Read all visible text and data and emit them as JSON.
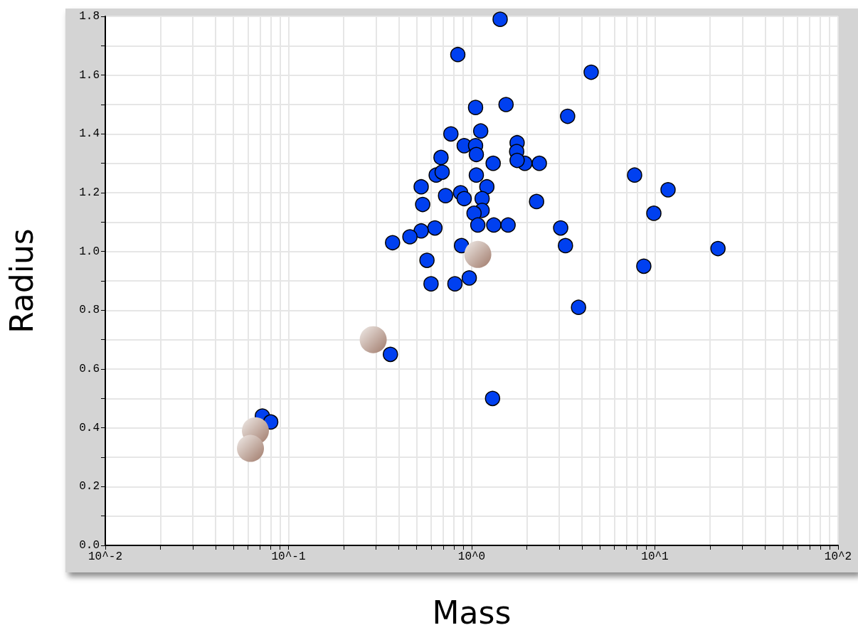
{
  "chart_data": {
    "type": "scatter",
    "xlabel": "Mass",
    "ylabel": "Radius",
    "log": "x",
    "grid": true,
    "marker": "circle",
    "xlim": [
      0.01,
      100
    ],
    "ylim": [
      0,
      1.8
    ],
    "xticks": [
      {
        "value": 0.01,
        "label": "10^-2"
      },
      {
        "value": 0.02,
        "label": null
      },
      {
        "value": 0.03,
        "label": null
      },
      {
        "value": 0.04,
        "label": null
      },
      {
        "value": 0.05,
        "label": null
      },
      {
        "value": 0.06,
        "label": null
      },
      {
        "value": 0.07,
        "label": null
      },
      {
        "value": 0.08,
        "label": null
      },
      {
        "value": 0.09,
        "label": null
      },
      {
        "value": 0.1,
        "label": "10^-1"
      },
      {
        "value": 0.2,
        "label": null
      },
      {
        "value": 0.3,
        "label": null
      },
      {
        "value": 0.4,
        "label": null
      },
      {
        "value": 0.5,
        "label": null
      },
      {
        "value": 0.6,
        "label": null
      },
      {
        "value": 0.7,
        "label": null
      },
      {
        "value": 0.8,
        "label": null
      },
      {
        "value": 0.9,
        "label": null
      },
      {
        "value": 1,
        "label": "10^0"
      },
      {
        "value": 2,
        "label": null
      },
      {
        "value": 3,
        "label": null
      },
      {
        "value": 4,
        "label": null
      },
      {
        "value": 5,
        "label": null
      },
      {
        "value": 6,
        "label": null
      },
      {
        "value": 7,
        "label": null
      },
      {
        "value": 8,
        "label": null
      },
      {
        "value": 9,
        "label": null
      },
      {
        "value": 10,
        "label": "10^1"
      },
      {
        "value": 20,
        "label": null
      },
      {
        "value": 30,
        "label": null
      },
      {
        "value": 40,
        "label": null
      },
      {
        "value": 50,
        "label": null
      },
      {
        "value": 60,
        "label": null
      },
      {
        "value": 70,
        "label": null
      },
      {
        "value": 80,
        "label": null
      },
      {
        "value": 90,
        "label": null
      },
      {
        "value": 100,
        "label": "10^2"
      }
    ],
    "yticks": [
      {
        "value": 0,
        "label": "0.0"
      },
      {
        "value": 0.1,
        "label": null
      },
      {
        "value": 0.2,
        "label": "0.2"
      },
      {
        "value": 0.3,
        "label": null
      },
      {
        "value": 0.4,
        "label": "0.4"
      },
      {
        "value": 0.5,
        "label": null
      },
      {
        "value": 0.6,
        "label": "0.6"
      },
      {
        "value": 0.7,
        "label": null
      },
      {
        "value": 0.8,
        "label": "0.8"
      },
      {
        "value": 0.9,
        "label": null
      },
      {
        "value": 1,
        "label": "1.0"
      },
      {
        "value": 1.1,
        "label": null
      },
      {
        "value": 1.2,
        "label": "1.2"
      },
      {
        "value": 1.3,
        "label": null
      },
      {
        "value": 1.4,
        "label": "1.4"
      },
      {
        "value": 1.5,
        "label": null
      },
      {
        "value": 1.6,
        "label": "1.6"
      },
      {
        "value": 1.7,
        "label": null
      },
      {
        "value": 1.8,
        "label": "1.8"
      }
    ],
    "series": [
      {
        "color": "#0040f0",
        "x": [
          1.43,
          0.84,
          4.49,
          1.54,
          1.05,
          3.34,
          0.77,
          1.12,
          0.91,
          1.05,
          1.06,
          1.77,
          1.76,
          0.68,
          1.31,
          1.95,
          2.34,
          1.77,
          0.64,
          0.69,
          1.06,
          7.75,
          0.53,
          1.21,
          0.87,
          0.72,
          11.8,
          0.91,
          1.14,
          2.26,
          0.54,
          1.14,
          1.03,
          9.87,
          0.63,
          0.53,
          1.08,
          1.32,
          1.58,
          3.06,
          0.46,
          0.37,
          3.25,
          0.88,
          22.1,
          0.57,
          8.7,
          0.6,
          0.81,
          0.97,
          3.83,
          0.36,
          1.3,
          0.072,
          0.08
        ],
        "values": [
          1.79,
          1.67,
          1.61,
          1.5,
          1.49,
          1.46,
          1.4,
          1.41,
          1.36,
          1.36,
          1.33,
          1.37,
          1.34,
          1.32,
          1.3,
          1.3,
          1.3,
          1.31,
          1.26,
          1.27,
          1.26,
          1.26,
          1.22,
          1.22,
          1.2,
          1.19,
          1.21,
          1.18,
          1.18,
          1.17,
          1.16,
          1.14,
          1.13,
          1.13,
          1.08,
          1.07,
          1.09,
          1.09,
          1.09,
          1.08,
          1.05,
          1.03,
          1.02,
          1.02,
          1.01,
          0.97,
          0.95,
          0.89,
          0.89,
          0.91,
          0.81,
          0.65,
          0.5,
          0.44,
          0.42
        ]
      },
      {
        "color": "#a07a6a",
        "x": [
          1.08,
          0.29,
          0.066,
          0.062
        ],
        "values": [
          0.99,
          0.7,
          0.39,
          0.33
        ]
      }
    ]
  }
}
